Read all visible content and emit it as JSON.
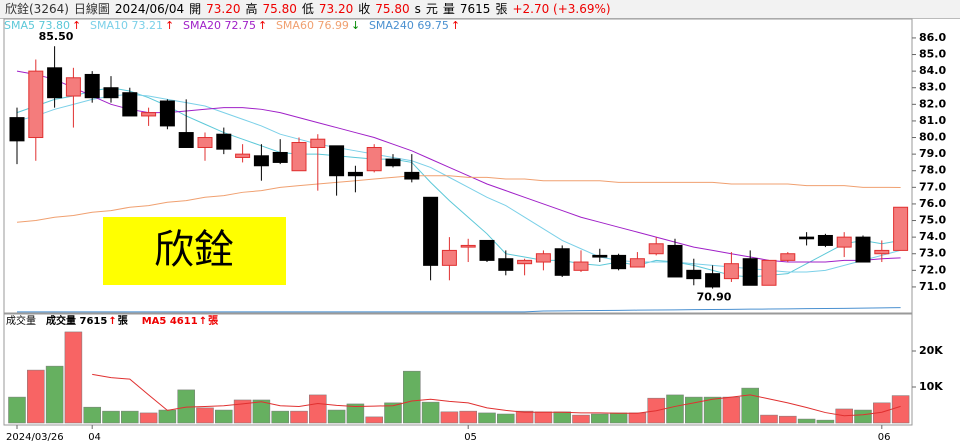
{
  "chart_data": [
    {
      "type": "candlestick",
      "header": [
        {
          "text": "欣銓(3264)",
          "color": "#333"
        },
        {
          "text": "日線圖",
          "color": "#333"
        },
        {
          "text": "2024/06/04",
          "color": "#000"
        },
        {
          "text": "開",
          "color": "#000"
        },
        {
          "text": "73.20",
          "color": "#e00"
        },
        {
          "text": "高",
          "color": "#000"
        },
        {
          "text": "75.80",
          "color": "#e00"
        },
        {
          "text": "低",
          "color": "#000"
        },
        {
          "text": "73.20",
          "color": "#e00"
        },
        {
          "text": "收",
          "color": "#000"
        },
        {
          "text": "75.80",
          "color": "#e00"
        },
        {
          "text": "s",
          "color": "#000"
        },
        {
          "text": "元",
          "color": "#000"
        },
        {
          "text": "量",
          "color": "#000"
        },
        {
          "text": "7615",
          "color": "#000"
        },
        {
          "text": "張",
          "color": "#000"
        },
        {
          "text": "+2.70 (+3.69%)",
          "color": "#e00"
        }
      ],
      "watermark": "欣銓",
      "categories": [
        "2024/03/26",
        null,
        null,
        null,
        "04",
        null,
        null,
        null,
        null,
        null,
        null,
        null,
        null,
        null,
        null,
        null,
        null,
        null,
        null,
        null,
        null,
        null,
        null,
        null,
        "05",
        null,
        null,
        null,
        null,
        null,
        null,
        null,
        null,
        null,
        null,
        null,
        null,
        null,
        null,
        null,
        null,
        null,
        null,
        null,
        null,
        null,
        "06",
        null
      ],
      "open": [
        81.2,
        80.0,
        84.2,
        82.5,
        83.8,
        83.0,
        82.7,
        81.3,
        82.2,
        80.3,
        79.4,
        80.2,
        78.8,
        78.9,
        79.1,
        78.0,
        79.4,
        79.5,
        77.9,
        78.0,
        78.7,
        77.9,
        76.4,
        72.3,
        73.4,
        73.8,
        72.7,
        72.4,
        72.5,
        73.3,
        72.0,
        72.9,
        72.9,
        72.2,
        73.0,
        73.5,
        72.0,
        71.8,
        71.5,
        72.7,
        71.1,
        72.6,
        74.0,
        74.1,
        73.4,
        74.0,
        73.0,
        73.2
      ],
      "high": [
        81.8,
        84.7,
        85.5,
        84.2,
        84.0,
        83.7,
        83.0,
        81.8,
        82.3,
        82.3,
        80.3,
        80.6,
        79.6,
        79.6,
        79.9,
        80.0,
        80.2,
        79.5,
        78.3,
        79.6,
        79.0,
        79.0,
        76.4,
        74.0,
        73.9,
        73.8,
        73.2,
        72.7,
        73.2,
        73.5,
        73.2,
        73.3,
        73.0,
        73.1,
        74.0,
        73.9,
        72.7,
        72.3,
        73.1,
        73.2,
        72.6,
        73.1,
        74.3,
        74.2,
        74.3,
        74.1,
        73.8,
        75.8
      ],
      "low": [
        78.4,
        78.6,
        81.8,
        80.6,
        82.1,
        82.1,
        81.3,
        80.7,
        80.5,
        79.4,
        78.6,
        79.0,
        78.5,
        77.4,
        78.4,
        78.0,
        76.8,
        76.5,
        76.7,
        77.9,
        78.2,
        77.3,
        71.4,
        71.4,
        72.5,
        72.5,
        71.7,
        71.7,
        72.0,
        71.6,
        71.9,
        72.5,
        72.0,
        72.2,
        72.9,
        71.6,
        71.1,
        70.9,
        71.3,
        71.1,
        71.1,
        72.5,
        73.5,
        73.4,
        72.8,
        72.5,
        72.5,
        73.2
      ],
      "close": [
        79.8,
        84.0,
        82.4,
        83.6,
        82.4,
        82.4,
        81.3,
        81.5,
        80.7,
        79.4,
        80.0,
        79.3,
        79.0,
        78.3,
        78.5,
        79.7,
        79.9,
        77.7,
        77.7,
        79.4,
        78.3,
        77.5,
        72.3,
        73.2,
        73.5,
        72.6,
        72.0,
        72.6,
        73.0,
        71.7,
        72.5,
        72.8,
        72.1,
        72.7,
        73.6,
        71.6,
        71.5,
        71.0,
        72.4,
        71.1,
        72.6,
        73.0,
        73.9,
        73.5,
        74.0,
        72.5,
        73.2,
        75.8
      ],
      "up_color": "#f47c7c",
      "down_color": "#000000",
      "series": [
        {
          "name": "SMA5 73.80",
          "arrow": "↑",
          "arrow_color": "#e00",
          "color": "#5cc8d8",
          "values": [
            81.5,
            81.9,
            82.3,
            82.5,
            82.8,
            83.0,
            82.8,
            82.4,
            81.9,
            81.3,
            80.8,
            80.3,
            79.9,
            79.5,
            79.1,
            79.0,
            79.0,
            78.9,
            78.8,
            78.7,
            78.7,
            78.5,
            77.3,
            76.2,
            75.2,
            74.2,
            73.0,
            72.8,
            72.6,
            72.6,
            72.4,
            72.3,
            72.5,
            72.3,
            72.6,
            72.5,
            72.3,
            72.0,
            71.7,
            71.6,
            71.7,
            71.8,
            72.4,
            73.0,
            73.6,
            73.8,
            73.6,
            73.8
          ]
        },
        {
          "name": "SMA10 73.21",
          "arrow": "↑",
          "arrow_color": "#e00",
          "color": "#7bd0e8",
          "values": [
            81.0,
            81.3,
            81.7,
            82.0,
            82.3,
            82.5,
            82.6,
            82.5,
            82.3,
            82.1,
            81.9,
            81.5,
            81.1,
            80.7,
            80.2,
            79.9,
            79.6,
            79.4,
            79.2,
            79.0,
            78.8,
            78.6,
            78.2,
            77.6,
            77.0,
            76.4,
            75.9,
            75.2,
            74.5,
            73.8,
            73.3,
            72.8,
            72.6,
            72.5,
            72.5,
            72.5,
            72.4,
            72.3,
            72.2,
            72.1,
            72.0,
            71.9,
            71.9,
            72.0,
            72.3,
            72.6,
            72.9,
            73.21
          ]
        },
        {
          "name": "SMA20 72.75",
          "arrow": "↑",
          "arrow_color": "#e00",
          "color": "#a020c8",
          "values": [
            84.0,
            83.8,
            83.5,
            83.0,
            82.5,
            82.0,
            81.7,
            81.5,
            81.5,
            81.6,
            81.7,
            81.8,
            81.8,
            81.7,
            81.5,
            81.2,
            80.9,
            80.6,
            80.3,
            80.0,
            79.6,
            79.2,
            78.7,
            78.2,
            77.7,
            77.2,
            76.8,
            76.4,
            76.0,
            75.6,
            75.2,
            74.9,
            74.6,
            74.3,
            74.0,
            73.7,
            73.4,
            73.2,
            73.0,
            72.8,
            72.6,
            72.5,
            72.5,
            72.5,
            72.6,
            72.6,
            72.7,
            72.75
          ]
        },
        {
          "name": "SMA60 76.99",
          "arrow": "↓",
          "arrow_color": "#080",
          "color": "#f0a070",
          "values": [
            74.9,
            75.0,
            75.2,
            75.3,
            75.5,
            75.6,
            75.8,
            75.9,
            76.1,
            76.2,
            76.4,
            76.5,
            76.7,
            76.8,
            77.0,
            77.1,
            77.2,
            77.3,
            77.4,
            77.5,
            77.6,
            77.7,
            77.7,
            77.7,
            77.6,
            77.6,
            77.5,
            77.5,
            77.4,
            77.4,
            77.4,
            77.4,
            77.3,
            77.3,
            77.3,
            77.3,
            77.3,
            77.3,
            77.2,
            77.2,
            77.2,
            77.2,
            77.1,
            77.1,
            77.1,
            77.0,
            77.0,
            76.99
          ]
        },
        {
          "name": "SMA240 69.75",
          "arrow": "↑",
          "arrow_color": "#e00",
          "color": "#4a90d0",
          "values": [
            69.5,
            69.5,
            69.5,
            69.5,
            69.5,
            69.5,
            69.5,
            69.5,
            69.5,
            69.5,
            69.5,
            69.5,
            69.5,
            69.5,
            69.5,
            69.5,
            69.5,
            69.5,
            69.5,
            69.5,
            69.5,
            69.5,
            69.5,
            69.5,
            69.5,
            69.5,
            69.5,
            69.5,
            69.55,
            69.56,
            69.57,
            69.58,
            69.59,
            69.6,
            69.61,
            69.62,
            69.63,
            69.64,
            69.65,
            69.66,
            69.67,
            69.68,
            69.69,
            69.7,
            69.71,
            69.72,
            69.74,
            69.75
          ]
        }
      ],
      "annotations": [
        {
          "index": 2,
          "value": 85.5,
          "label": "85.50"
        },
        {
          "index": 37,
          "value": 70.9,
          "label": "70.90"
        }
      ],
      "ylim": [
        69.49,
        87.08
      ],
      "yticks": [
        {
          "value": 71,
          "label": "71.0"
        },
        {
          "value": 72,
          "label": "72.0"
        },
        {
          "value": 73,
          "label": "73.0"
        },
        {
          "value": 74,
          "label": "74.0"
        },
        {
          "value": 75,
          "label": "75.0"
        },
        {
          "value": 76,
          "label": "76.0"
        },
        {
          "value": 77,
          "label": "77.0"
        },
        {
          "value": 78,
          "label": "78.0"
        },
        {
          "value": 79,
          "label": "79.0"
        },
        {
          "value": 80,
          "label": "80.0"
        },
        {
          "value": 81,
          "label": "81.0"
        },
        {
          "value": 82,
          "label": "82.0"
        },
        {
          "value": 83,
          "label": "83.0"
        },
        {
          "value": 84,
          "label": "84.0"
        },
        {
          "value": 85,
          "label": "85.0"
        },
        {
          "value": 86,
          "label": "86.0"
        }
      ]
    },
    {
      "type": "bar",
      "title": "成交量",
      "legend": [
        {
          "text": "成交量 7615",
          "color": "#000"
        },
        {
          "text": "↑",
          "color": "#e00"
        },
        {
          "text": "張",
          "color": "#000"
        },
        {
          "text": "MA5 4611",
          "color": "#e00"
        },
        {
          "text": "↑",
          "color": "#e00"
        },
        {
          "text": "張",
          "color": "#e00"
        }
      ],
      "values": [
        7200,
        14700,
        15800,
        25300,
        4400,
        3300,
        3300,
        2800,
        3600,
        9200,
        4200,
        3600,
        6400,
        6400,
        3300,
        3300,
        7800,
        3600,
        5300,
        1700,
        5600,
        14400,
        5800,
        3100,
        3300,
        2800,
        2500,
        3300,
        3100,
        3100,
        2200,
        2500,
        2800,
        2800,
        6900,
        7800,
        7200,
        7200,
        7200,
        9700,
        2200,
        1900,
        1100,
        800,
        3900,
        3600,
        5600,
        7615
      ],
      "up_color": "#f86464",
      "down_color": "#66b060",
      "series": [
        {
          "name": "MA5 4611",
          "color": "#e03030",
          "values": [
            null,
            null,
            null,
            null,
            13500,
            12600,
            12200,
            7800,
            3500,
            4400,
            4600,
            4800,
            5300,
            5900,
            4800,
            4600,
            5400,
            4900,
            4600,
            4700,
            4800,
            6100,
            6600,
            6000,
            5600,
            4200,
            3500,
            3000,
            3000,
            3000,
            2800,
            2800,
            2700,
            2700,
            3400,
            4600,
            5600,
            6600,
            7200,
            7800,
            6700,
            5600,
            4300,
            2900,
            2000,
            2300,
            3000,
            4611
          ]
        }
      ],
      "ylim": [
        0,
        30000
      ],
      "yticks": [
        {
          "value": 10000,
          "label": "10K"
        },
        {
          "value": 20000,
          "label": "20K"
        }
      ]
    }
  ]
}
